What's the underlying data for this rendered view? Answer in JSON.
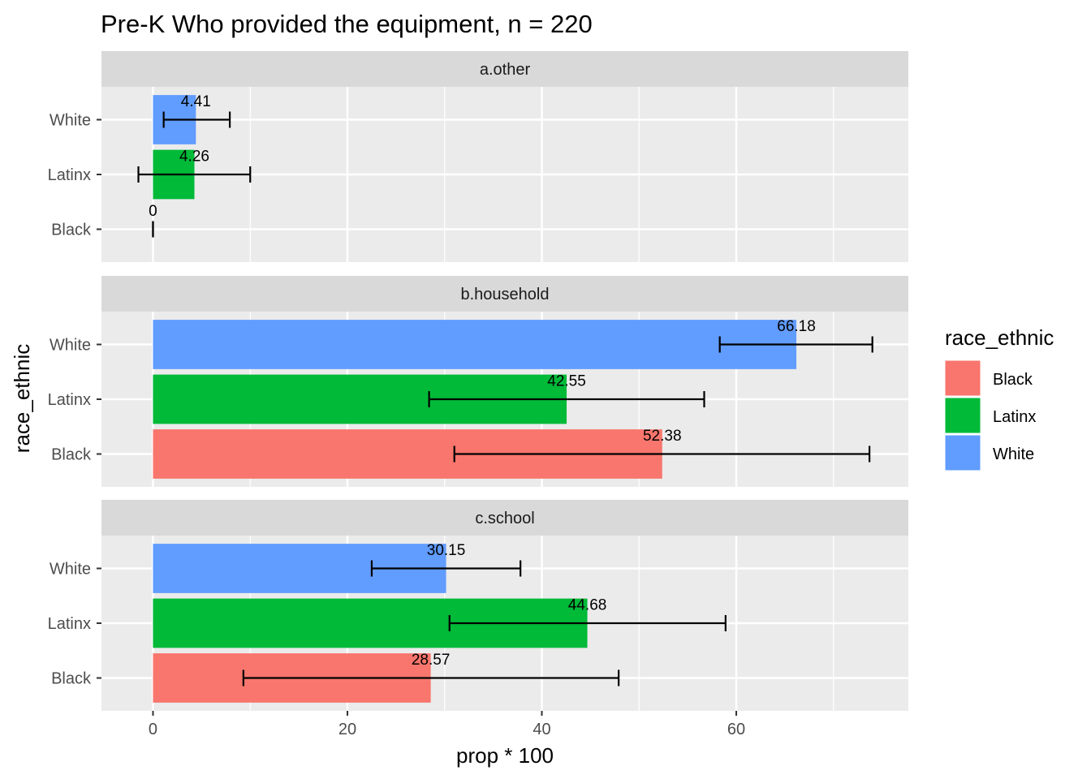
{
  "chart_data": {
    "type": "bar",
    "orientation": "horizontal",
    "title": "Pre-K Who provided the equipment, n = 220",
    "xlabel": "prop * 100",
    "ylabel": "race_ethnic",
    "xlim": [
      -5.3,
      77.7
    ],
    "x_ticks": [
      "0",
      "20",
      "40",
      "60"
    ],
    "x_tick_values": [
      0,
      20,
      40,
      60
    ],
    "categories": [
      "White",
      "Latinx",
      "Black"
    ],
    "grid": true,
    "legend": {
      "title": "race_ethnic",
      "position": "right",
      "entries": [
        {
          "name": "Black",
          "color": "#F8766D"
        },
        {
          "name": "Latinx",
          "color": "#00BA38"
        },
        {
          "name": "White",
          "color": "#619CFF"
        }
      ]
    },
    "panels": [
      {
        "name": "a.other",
        "bars": [
          {
            "category": "White",
            "value": 4.41,
            "label": "4.41",
            "ci": [
              1.1,
              7.9
            ]
          },
          {
            "category": "Latinx",
            "value": 4.26,
            "label": "4.26",
            "ci": [
              -1.5,
              10.0
            ]
          },
          {
            "category": "Black",
            "value": 0,
            "label": "0",
            "ci": [
              0,
              0
            ]
          }
        ]
      },
      {
        "name": "b.household",
        "bars": [
          {
            "category": "White",
            "value": 66.18,
            "label": "66.18",
            "ci": [
              58.3,
              74.0
            ]
          },
          {
            "category": "Latinx",
            "value": 42.55,
            "label": "42.55",
            "ci": [
              28.4,
              56.7
            ]
          },
          {
            "category": "Black",
            "value": 52.38,
            "label": "52.38",
            "ci": [
              31.0,
              73.7
            ]
          }
        ]
      },
      {
        "name": "c.school",
        "bars": [
          {
            "category": "White",
            "value": 30.15,
            "label": "30.15",
            "ci": [
              22.5,
              37.8
            ]
          },
          {
            "category": "Latinx",
            "value": 44.68,
            "label": "44.68",
            "ci": [
              30.5,
              58.9
            ]
          },
          {
            "category": "Black",
            "value": 28.57,
            "label": "28.57",
            "ci": [
              9.3,
              47.9
            ]
          }
        ]
      }
    ],
    "colors": {
      "panel_background": "#EBEBEB",
      "strip_background": "#D9D9D9",
      "gridline": "#FFFFFF",
      "error_bar": "#000000"
    }
  }
}
